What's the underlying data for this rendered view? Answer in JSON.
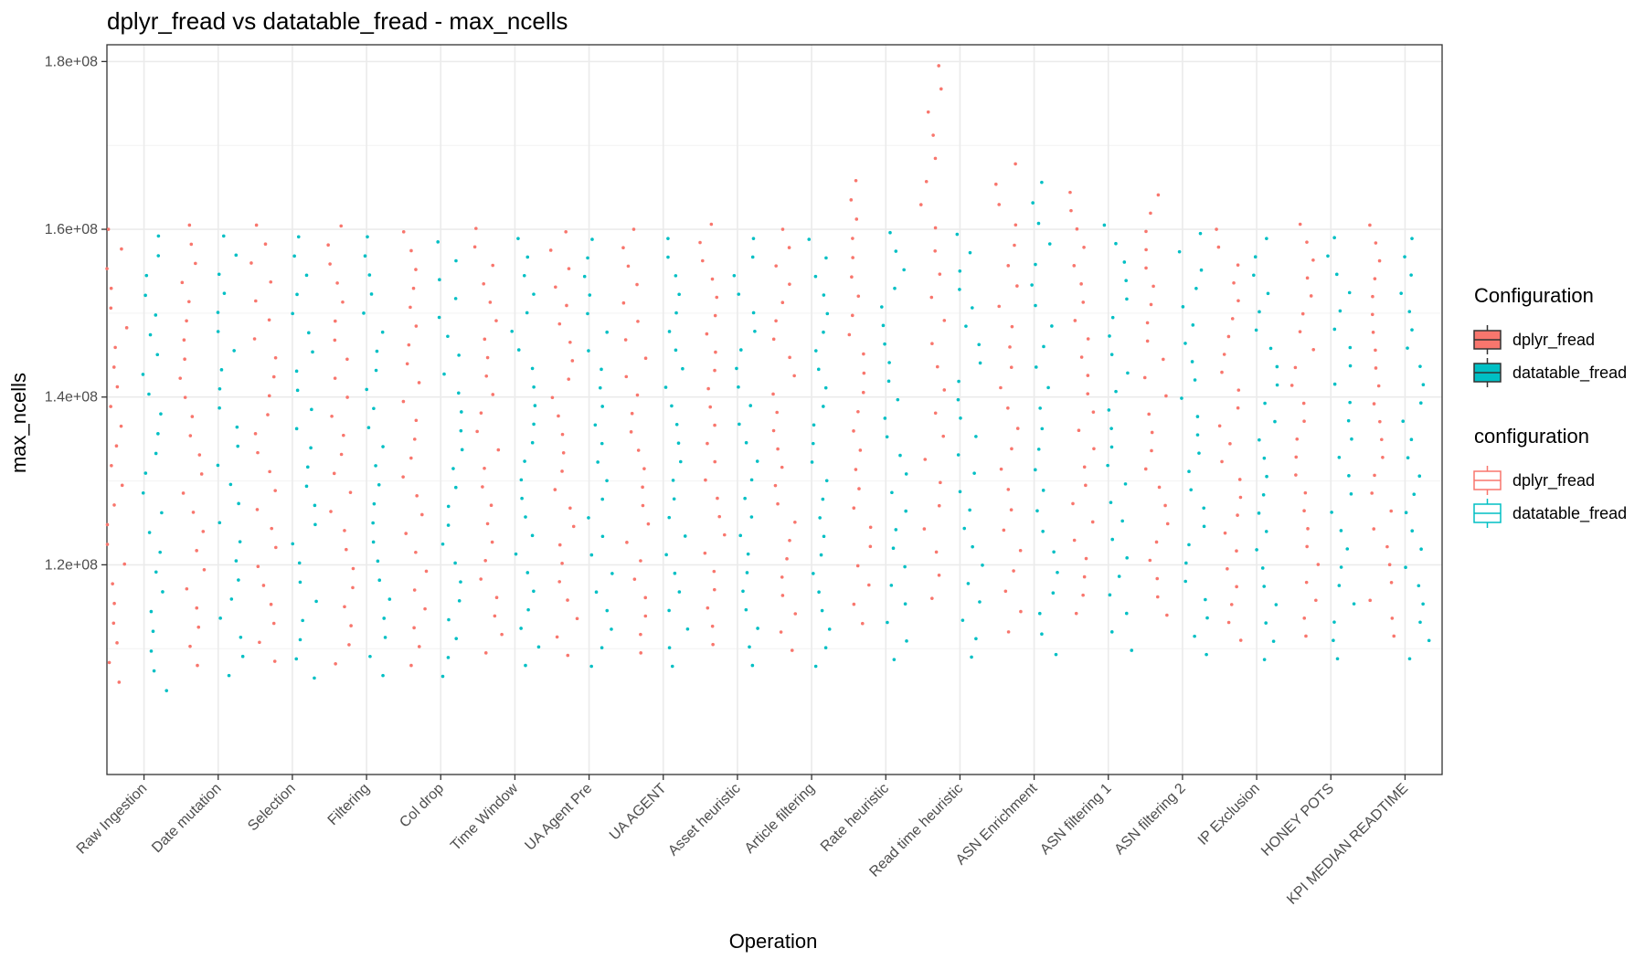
{
  "chart_data": {
    "type": "scatter",
    "title": "dplyr_fread vs datatable_fread - max_ncells",
    "xlabel": "Operation",
    "ylabel": "max_ncells",
    "y_ticks": [
      {
        "value": 120000000,
        "label": "1.2e+08"
      },
      {
        "value": 140000000,
        "label": "1.4e+08"
      },
      {
        "value": 160000000,
        "label": "1.6e+08"
      },
      {
        "value": 180000000,
        "label": "1.8e+08"
      }
    ],
    "ylim": [
      95000000,
      182000000
    ],
    "grid": true,
    "legend_position": "right",
    "categories": [
      "Raw Ingestion",
      "Date mutation",
      "Selection",
      "Filtering",
      "Col drop",
      "Time Window",
      "UA Agent Pre",
      "UA AGENT",
      "Asset heuristic",
      "Article filtering",
      "Rate heuristic",
      "Read time heuristic",
      "ASN Enrichment",
      "ASN filtering 1",
      "ASN filtering 2",
      "IP Exclusion",
      "HONEY POTS",
      "KPI MEDIAN READTIME"
    ],
    "series": [
      {
        "name": "dplyr_fread",
        "color": "#F8766D",
        "ranges": [
          [
            106000000,
            160000000
          ],
          [
            108000000,
            160500000
          ],
          [
            108500000,
            160500000
          ],
          [
            108200000,
            160400000
          ],
          [
            108000000,
            159700000
          ],
          [
            109500000,
            160100000
          ],
          [
            109200000,
            159700000
          ],
          [
            109500000,
            160000000
          ],
          [
            110500000,
            160600000
          ],
          [
            109800000,
            160000000
          ],
          [
            113000000,
            165800000
          ],
          [
            116000000,
            179500000
          ],
          [
            112000000,
            167800000
          ],
          [
            114200000,
            164400000
          ],
          [
            114000000,
            164100000
          ],
          [
            111000000,
            160000000
          ],
          [
            111500000,
            160600000
          ],
          [
            111500000,
            160500000
          ]
        ]
      },
      {
        "name": "datatable_fread",
        "color": "#00BFC4",
        "ranges": [
          [
            105000000,
            159200000
          ],
          [
            106800000,
            159200000
          ],
          [
            106500000,
            159100000
          ],
          [
            106800000,
            159100000
          ],
          [
            106700000,
            158500000
          ],
          [
            108000000,
            158900000
          ],
          [
            107900000,
            158800000
          ],
          [
            107900000,
            158900000
          ],
          [
            108000000,
            158900000
          ],
          [
            107900000,
            158800000
          ],
          [
            108700000,
            159600000
          ],
          [
            109000000,
            159400000
          ],
          [
            109300000,
            165600000
          ],
          [
            109800000,
            160500000
          ],
          [
            109300000,
            159500000
          ],
          [
            108700000,
            158900000
          ],
          [
            108800000,
            159000000
          ],
          [
            108800000,
            158900000
          ]
        ]
      }
    ]
  },
  "legends": [
    {
      "title": "Configuration",
      "style": "filled",
      "items": [
        "dplyr_fread",
        "datatable_fread"
      ]
    },
    {
      "title": "configuration",
      "style": "outline",
      "items": [
        "dplyr_fread",
        "datatable_fread"
      ]
    }
  ]
}
